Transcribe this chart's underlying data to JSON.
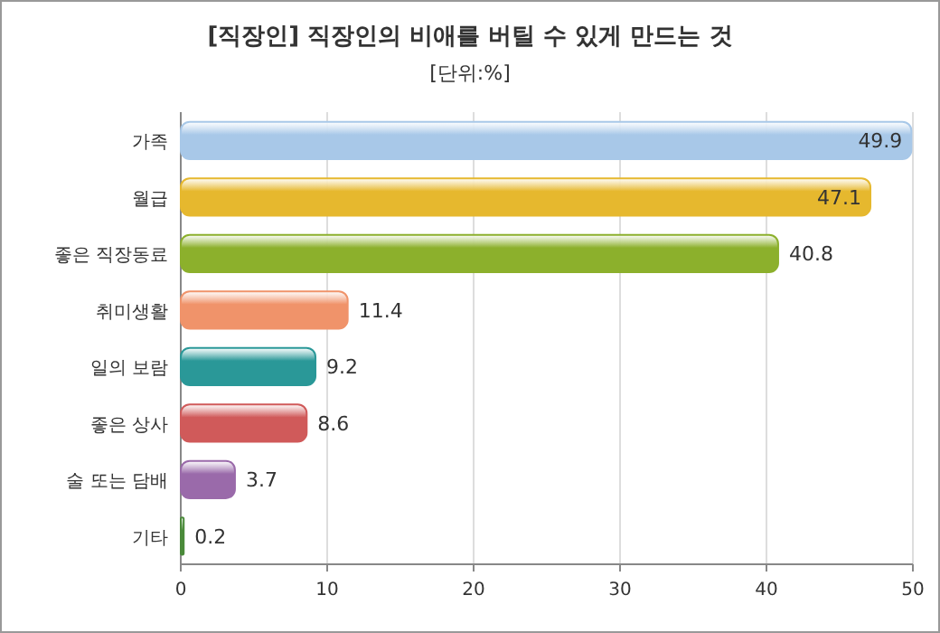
{
  "chart_data": {
    "type": "bar",
    "orientation": "horizontal",
    "title": "[직장인] 직장인의 비애를 버틸 수 있게 만드는 것",
    "subtitle": "[단위:%]",
    "categories": [
      "가족",
      "월급",
      "좋은 직장동료",
      "취미생활",
      "일의 보람",
      "좋은 상사",
      "술 또는 담배",
      "기타"
    ],
    "values": [
      49.9,
      47.1,
      40.8,
      11.4,
      9.2,
      8.6,
      3.7,
      0.2
    ],
    "colors": [
      "#a8c8e8",
      "#e6b82e",
      "#8cb02c",
      "#f0936a",
      "#2a9898",
      "#d05a5a",
      "#9a6aaa",
      "#4a8a3a"
    ],
    "xlim": [
      0,
      50
    ],
    "xticks": [
      0,
      10,
      20,
      30,
      40,
      50
    ],
    "grid": "x",
    "data_labels": true
  }
}
